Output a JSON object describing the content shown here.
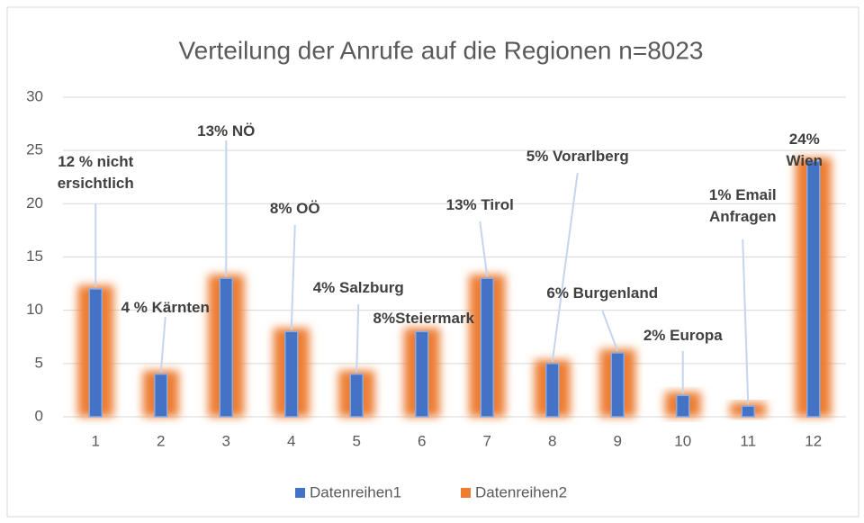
{
  "chart_data": {
    "type": "bar",
    "title": "Verteilung der Anrufe auf die Regionen n=8023",
    "categories": [
      "1",
      "2",
      "3",
      "4",
      "5",
      "6",
      "7",
      "8",
      "9",
      "10",
      "11",
      "12"
    ],
    "series": [
      {
        "name": "Datenreihen1",
        "color": "#4472c4",
        "values": [
          12,
          4,
          13,
          8,
          4,
          8,
          13,
          5,
          6,
          2,
          1,
          24
        ],
        "value_labels": [
          "12 % nicht\nersichtlich",
          "4 % Kärnten",
          "13% NÖ",
          "8% OÖ",
          "4% Salzburg",
          "8%Steiermark",
          "13% Tirol",
          "5% Vorarlberg",
          "6% Burgenland",
          "2% Europa",
          "1% Email\nAnfragen",
          "24% Wien"
        ]
      },
      {
        "name": "Datenreihen2",
        "color": "#ed7d31",
        "values": [
          12,
          4,
          13,
          8,
          4,
          8,
          13,
          5,
          6,
          2,
          1,
          24
        ]
      }
    ],
    "ylim": [
      0,
      30
    ],
    "yticks": [
      0,
      5,
      10,
      15,
      20,
      25,
      30
    ],
    "grid": true,
    "legend": "bottom"
  }
}
